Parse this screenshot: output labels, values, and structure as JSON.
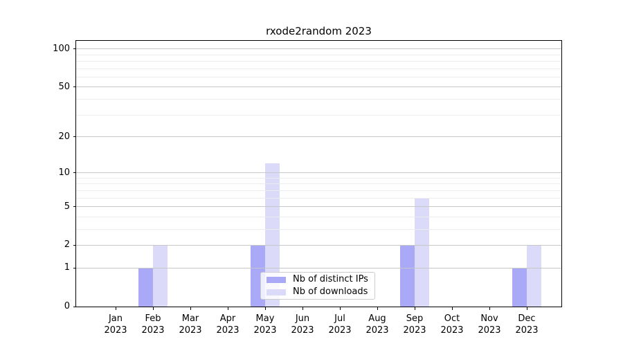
{
  "chart_data": {
    "type": "bar",
    "title": "rxode2random 2023",
    "year": "2023",
    "months": [
      "Jan",
      "Feb",
      "Mar",
      "Apr",
      "May",
      "Jun",
      "Jul",
      "Aug",
      "Sep",
      "Oct",
      "Nov",
      "Dec"
    ],
    "series": [
      {
        "name": "Nb of distinct IPs",
        "color": "#a9a9f7",
        "values": [
          0,
          1,
          0,
          0,
          2,
          0,
          0,
          0,
          2,
          0,
          0,
          1
        ]
      },
      {
        "name": "Nb of downloads",
        "color": "#dbdbf9",
        "values": [
          0,
          2,
          0,
          0,
          12,
          0,
          0,
          0,
          6,
          0,
          0,
          2
        ]
      }
    ],
    "yscale": "log1p",
    "ylim": [
      0,
      116
    ],
    "yticks_major": [
      0,
      1,
      2,
      5,
      10,
      20,
      50,
      100
    ],
    "yticks_minor": [
      3,
      4,
      6,
      7,
      8,
      9,
      30,
      40,
      60,
      70,
      80,
      90
    ],
    "grid": "on",
    "legend_position": "lower center",
    "colors": {
      "major_grid": "#c7c7c7",
      "minor_grid": "#ececec",
      "axis": "#000000",
      "background": "#ffffff"
    }
  }
}
